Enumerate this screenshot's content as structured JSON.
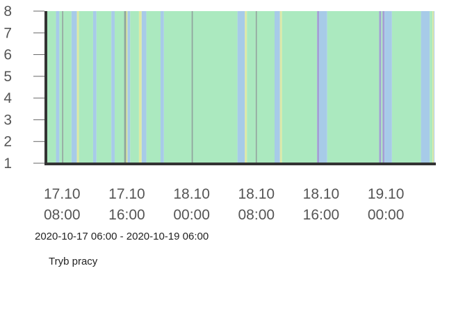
{
  "range_label": "2020-10-17 06:00 - 2020-10-19 06:00",
  "legend_label": "Tryb pracy",
  "chart_data": {
    "type": "area",
    "title": "",
    "xlabel": "",
    "ylabel": "",
    "x_range": [
      "2020-10-17 06:00",
      "2020-10-19 06:00"
    ],
    "ylim": [
      1,
      8
    ],
    "y_ticks": [
      "8",
      "7",
      "6",
      "5",
      "4",
      "3",
      "2",
      "1"
    ],
    "x_ticks": [
      {
        "time": "2020-10-17 08:00",
        "line1": "17.10",
        "line2": "08:00"
      },
      {
        "time": "2020-10-17 16:00",
        "line1": "17.10",
        "line2": "16:00"
      },
      {
        "time": "2020-10-18 00:00",
        "line1": "18.10",
        "line2": "00:00"
      },
      {
        "time": "2020-10-18 08:00",
        "line1": "18.10",
        "line2": "08:00"
      },
      {
        "time": "2020-10-18 16:00",
        "line1": "18.10",
        "line2": "16:00"
      },
      {
        "time": "2020-10-19 00:00",
        "line1": "19.10",
        "line2": "00:00"
      }
    ],
    "colors": {
      "green": "#abe9bf",
      "blue": "#a7cbe8",
      "yellow": "#dde9a5",
      "gray": "#8ea69c",
      "purple": "#a39fd4"
    },
    "segments": [
      {
        "start": "2020-10-17 06:00",
        "end": "2020-10-17 07:15",
        "state": "green"
      },
      {
        "start": "2020-10-17 07:15",
        "end": "2020-10-17 07:40",
        "state": "blue"
      },
      {
        "start": "2020-10-17 07:40",
        "end": "2020-10-17 08:00",
        "state": "green"
      },
      {
        "start": "2020-10-17 08:00",
        "end": "2020-10-17 08:10",
        "state": "gray"
      },
      {
        "start": "2020-10-17 08:10",
        "end": "2020-10-17 09:10",
        "state": "green"
      },
      {
        "start": "2020-10-17 09:10",
        "end": "2020-10-17 09:50",
        "state": "blue"
      },
      {
        "start": "2020-10-17 09:50",
        "end": "2020-10-17 10:05",
        "state": "yellow"
      },
      {
        "start": "2020-10-17 10:05",
        "end": "2020-10-17 11:50",
        "state": "green"
      },
      {
        "start": "2020-10-17 11:50",
        "end": "2020-10-17 12:15",
        "state": "blue"
      },
      {
        "start": "2020-10-17 12:15",
        "end": "2020-10-17 14:05",
        "state": "green"
      },
      {
        "start": "2020-10-17 14:05",
        "end": "2020-10-17 14:30",
        "state": "blue"
      },
      {
        "start": "2020-10-17 14:30",
        "end": "2020-10-17 15:40",
        "state": "green"
      },
      {
        "start": "2020-10-17 15:40",
        "end": "2020-10-17 15:55",
        "state": "gray"
      },
      {
        "start": "2020-10-17 15:55",
        "end": "2020-10-17 16:05",
        "state": "yellow"
      },
      {
        "start": "2020-10-17 16:05",
        "end": "2020-10-17 16:25",
        "state": "blue"
      },
      {
        "start": "2020-10-17 16:25",
        "end": "2020-10-17 17:30",
        "state": "green"
      },
      {
        "start": "2020-10-17 17:30",
        "end": "2020-10-17 17:50",
        "state": "yellow"
      },
      {
        "start": "2020-10-17 17:50",
        "end": "2020-10-17 18:25",
        "state": "blue"
      },
      {
        "start": "2020-10-17 18:25",
        "end": "2020-10-17 20:10",
        "state": "green"
      },
      {
        "start": "2020-10-17 20:10",
        "end": "2020-10-17 20:35",
        "state": "blue"
      },
      {
        "start": "2020-10-17 20:35",
        "end": "2020-10-18 00:00",
        "state": "green"
      },
      {
        "start": "2020-10-18 00:00",
        "end": "2020-10-18 00:10",
        "state": "gray"
      },
      {
        "start": "2020-10-18 00:10",
        "end": "2020-10-18 05:40",
        "state": "green"
      },
      {
        "start": "2020-10-18 05:40",
        "end": "2020-10-18 06:35",
        "state": "blue"
      },
      {
        "start": "2020-10-18 06:35",
        "end": "2020-10-18 06:50",
        "state": "yellow"
      },
      {
        "start": "2020-10-18 06:50",
        "end": "2020-10-18 07:55",
        "state": "green"
      },
      {
        "start": "2020-10-18 07:55",
        "end": "2020-10-18 08:05",
        "state": "gray"
      },
      {
        "start": "2020-10-18 08:05",
        "end": "2020-10-18 10:15",
        "state": "green"
      },
      {
        "start": "2020-10-18 10:15",
        "end": "2020-10-18 10:55",
        "state": "blue"
      },
      {
        "start": "2020-10-18 10:55",
        "end": "2020-10-18 11:10",
        "state": "yellow"
      },
      {
        "start": "2020-10-18 11:10",
        "end": "2020-10-18 15:30",
        "state": "green"
      },
      {
        "start": "2020-10-18 15:30",
        "end": "2020-10-18 15:45",
        "state": "purple"
      },
      {
        "start": "2020-10-18 15:45",
        "end": "2020-10-18 16:45",
        "state": "blue"
      },
      {
        "start": "2020-10-18 16:45",
        "end": "2020-10-18 23:10",
        "state": "green"
      },
      {
        "start": "2020-10-18 23:10",
        "end": "2020-10-18 23:25",
        "state": "purple"
      },
      {
        "start": "2020-10-18 23:25",
        "end": "2020-10-18 23:35",
        "state": "green"
      },
      {
        "start": "2020-10-18 23:35",
        "end": "2020-10-18 23:50",
        "state": "purple"
      },
      {
        "start": "2020-10-18 23:50",
        "end": "2020-10-19 00:45",
        "state": "blue"
      },
      {
        "start": "2020-10-19 00:45",
        "end": "2020-10-19 04:20",
        "state": "green"
      },
      {
        "start": "2020-10-19 04:20",
        "end": "2020-10-19 05:25",
        "state": "blue"
      },
      {
        "start": "2020-10-19 05:25",
        "end": "2020-10-19 05:45",
        "state": "green"
      },
      {
        "start": "2020-10-19 05:45",
        "end": "2020-10-19 05:55",
        "state": "yellow"
      },
      {
        "start": "2020-10-19 05:55",
        "end": "2020-10-19 06:00",
        "state": "blue"
      }
    ],
    "grid": false,
    "legend": "bottom-left"
  }
}
